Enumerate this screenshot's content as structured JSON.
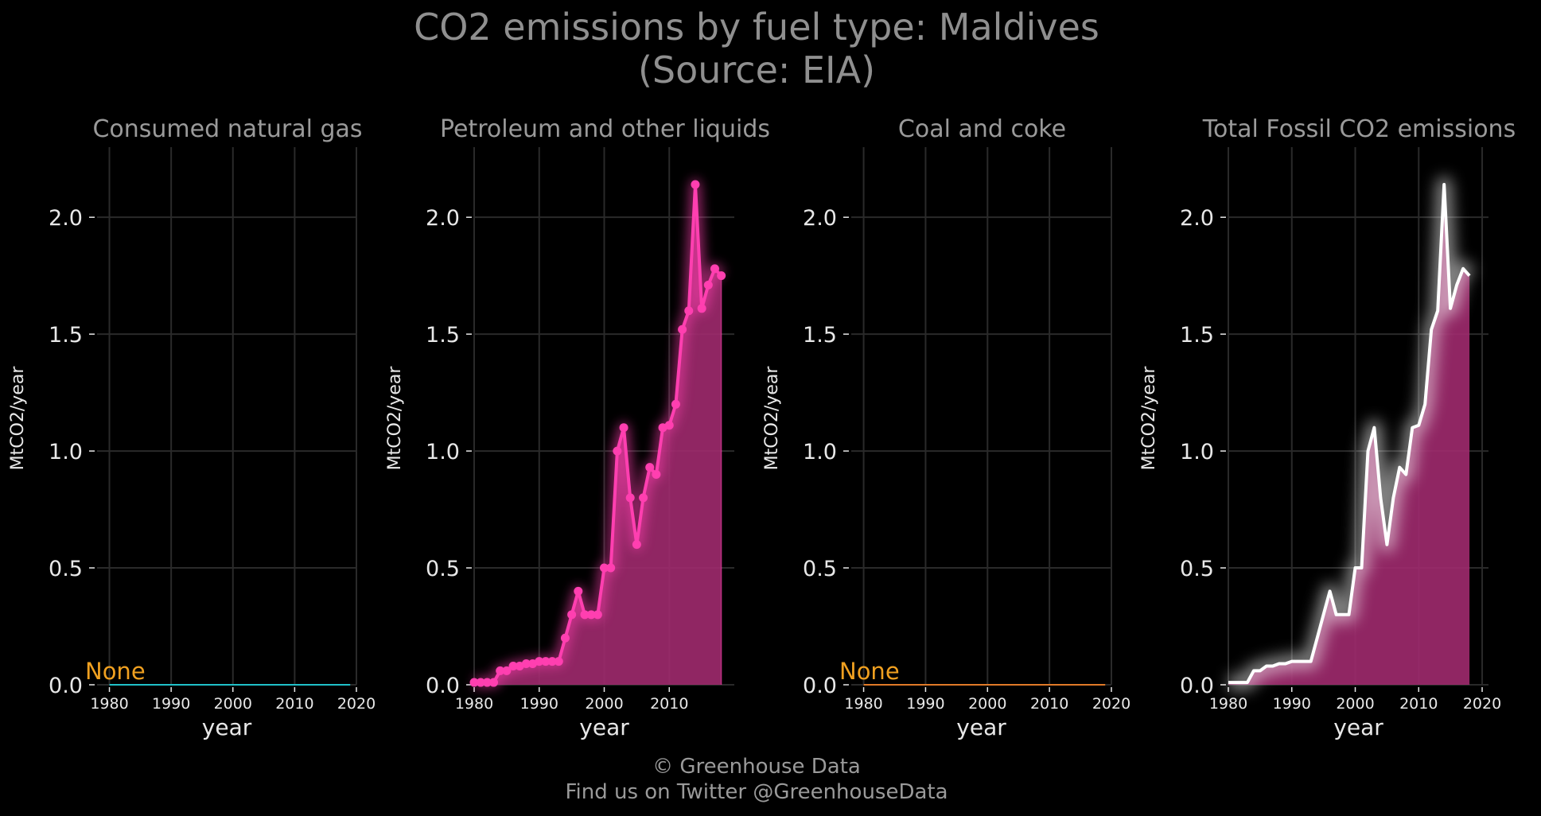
{
  "title_line1": "CO2 emissions by fuel type: Maldives",
  "title_line2": "(Source: EIA)",
  "footer_line1": "© Greenhouse Data",
  "footer_line2": "Find us on Twitter @GreenhouseData",
  "chart_data": [
    {
      "type": "area",
      "title": "Consumed natural gas",
      "xlabel": "year",
      "ylabel": "MtCO2/year",
      "xlim": [
        1978,
        2020
      ],
      "ylim": [
        0,
        2.3
      ],
      "xticks": [
        1980,
        1990,
        2000,
        2010,
        2020
      ],
      "yticks": [
        0.0,
        0.5,
        1.0,
        1.5,
        2.0
      ],
      "grid": true,
      "color": "#20c0c8",
      "annotation": "None",
      "annotation_color": "#f0a020",
      "series": [
        {
          "x": [
            1980,
            2019
          ],
          "values": [
            0,
            0
          ]
        }
      ]
    },
    {
      "type": "area",
      "title": "Petroleum and other liquids",
      "xlabel": "year",
      "ylabel": "MtCO2/year",
      "xlim": [
        1980,
        2020
      ],
      "ylim": [
        0,
        2.3
      ],
      "xticks": [
        1980,
        1990,
        2000,
        2010
      ],
      "yticks": [
        0.0,
        0.5,
        1.0,
        1.5,
        2.0
      ],
      "grid": true,
      "color": "#ff3fb0",
      "fill_color": "#a02a6e",
      "markers": true,
      "series": [
        {
          "x": [
            1980,
            1981,
            1982,
            1983,
            1984,
            1985,
            1986,
            1987,
            1988,
            1989,
            1990,
            1991,
            1992,
            1993,
            1994,
            1995,
            1996,
            1997,
            1998,
            1999,
            2000,
            2001,
            2002,
            2003,
            2004,
            2005,
            2006,
            2007,
            2008,
            2009,
            2010,
            2011,
            2012,
            2013,
            2014,
            2015,
            2016,
            2017,
            2018
          ],
          "values": [
            0.01,
            0.01,
            0.01,
            0.01,
            0.06,
            0.06,
            0.08,
            0.08,
            0.09,
            0.09,
            0.1,
            0.1,
            0.1,
            0.1,
            0.2,
            0.3,
            0.4,
            0.3,
            0.3,
            0.3,
            0.5,
            0.5,
            1.0,
            1.1,
            0.8,
            0.6,
            0.8,
            0.93,
            0.9,
            1.1,
            1.11,
            1.2,
            1.52,
            1.6,
            2.14,
            1.61,
            1.71,
            1.78,
            1.75
          ]
        }
      ]
    },
    {
      "type": "area",
      "title": "Coal and coke",
      "xlabel": "year",
      "ylabel": "MtCO2/year",
      "xlim": [
        1978,
        2020
      ],
      "ylim": [
        0,
        2.3
      ],
      "xticks": [
        1980,
        1990,
        2000,
        2010,
        2020
      ],
      "yticks": [
        0.0,
        0.5,
        1.0,
        1.5,
        2.0
      ],
      "grid": true,
      "color": "#e07a28",
      "annotation": "None",
      "annotation_color": "#f0a020",
      "series": [
        {
          "x": [
            1980,
            2019
          ],
          "values": [
            0,
            0
          ]
        }
      ]
    },
    {
      "type": "area",
      "title": "Total Fossil CO2 emissions",
      "xlabel": "year",
      "ylabel": "MtCO2/year",
      "xlim": [
        1980,
        2021
      ],
      "ylim": [
        0,
        2.3
      ],
      "xticks": [
        1980,
        1990,
        2000,
        2010,
        2020
      ],
      "yticks": [
        0.0,
        0.5,
        1.0,
        1.5,
        2.0
      ],
      "grid": true,
      "color": "#ffffff",
      "fill_color": "#a02a6e",
      "markers": false,
      "series": [
        {
          "x": [
            1980,
            1981,
            1982,
            1983,
            1984,
            1985,
            1986,
            1987,
            1988,
            1989,
            1990,
            1991,
            1992,
            1993,
            1994,
            1995,
            1996,
            1997,
            1998,
            1999,
            2000,
            2001,
            2002,
            2003,
            2004,
            2005,
            2006,
            2007,
            2008,
            2009,
            2010,
            2011,
            2012,
            2013,
            2014,
            2015,
            2016,
            2017,
            2018
          ],
          "values": [
            0.01,
            0.01,
            0.01,
            0.01,
            0.06,
            0.06,
            0.08,
            0.08,
            0.09,
            0.09,
            0.1,
            0.1,
            0.1,
            0.1,
            0.2,
            0.3,
            0.4,
            0.3,
            0.3,
            0.3,
            0.5,
            0.5,
            1.0,
            1.1,
            0.8,
            0.6,
            0.8,
            0.93,
            0.9,
            1.1,
            1.11,
            1.2,
            1.52,
            1.6,
            2.14,
            1.61,
            1.71,
            1.78,
            1.75
          ]
        }
      ]
    }
  ]
}
